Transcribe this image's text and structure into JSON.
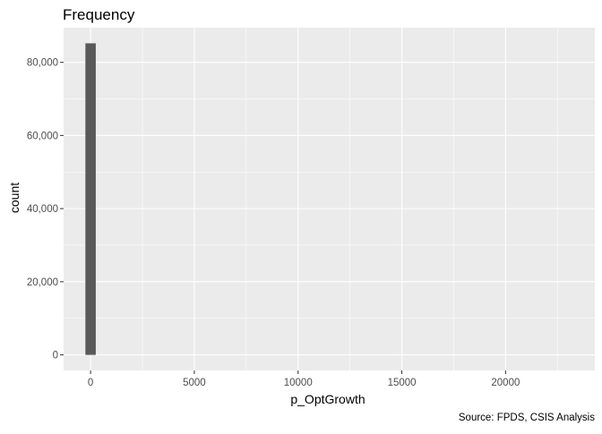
{
  "chart_data": {
    "type": "bar",
    "title": "Frequency",
    "xlabel": "p_OptGrowth",
    "ylabel": "count",
    "caption": "Source: FPDS, CSIS Analysis",
    "bars": [
      {
        "x": 0,
        "width": 500,
        "count": 85200
      }
    ],
    "xlim": [
      -1300,
      24300
    ],
    "ylim": [
      -4260,
      89460
    ],
    "x_ticks": [
      0,
      5000,
      10000,
      15000,
      20000
    ],
    "x_tick_labels": [
      "0",
      "5000",
      "10000",
      "15000",
      "20000"
    ],
    "x_minor_gridlines": [
      2500,
      7500,
      12500,
      17500,
      22500
    ],
    "y_ticks": [
      0,
      20000,
      40000,
      60000,
      80000
    ],
    "y_tick_labels": [
      "0",
      "20,000",
      "40,000",
      "60,000",
      "80,000"
    ],
    "y_minor_gridlines": [
      10000,
      30000,
      50000,
      70000
    ],
    "grid": true,
    "legend": "none",
    "colors": {
      "panel_background": "#EBEBEB",
      "grid_line": "#FFFFFF",
      "bar_fill": "#595959",
      "tick_label": "#4D4D4D",
      "axis_title": "#000000",
      "tick_mark": "#333333"
    }
  }
}
